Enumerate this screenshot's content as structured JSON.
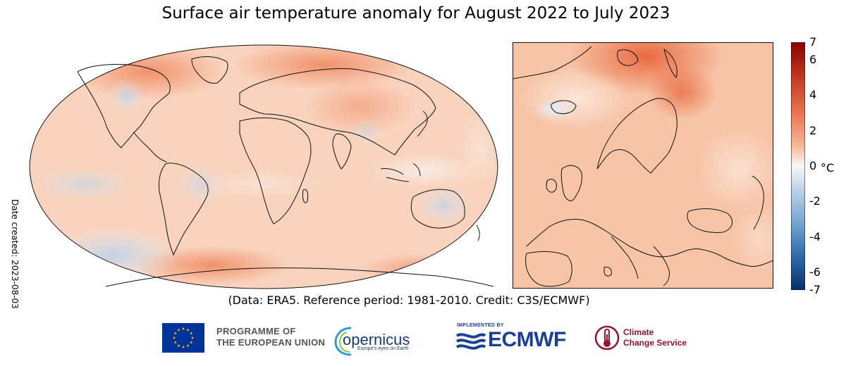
{
  "title": "Surface air temperature anomaly for August 2022 to July 2023",
  "caption": "(Data: ERA5.  Reference period: 1981-2010.  Credit: C3S/ECMWF)",
  "date_created": "Date created: 2023-08-03",
  "colorbar": {
    "unit": "°C",
    "ticks": [
      "7",
      "6",
      "4",
      "2",
      "0",
      "-2",
      "-4",
      "-6",
      "-7"
    ],
    "range": [
      -7,
      7
    ],
    "colors": [
      "#08306b",
      "#2166ac",
      "#92c5de",
      "#f7f7f7",
      "#fddbc7",
      "#f4a582",
      "#d6604d",
      "#b2182b",
      "#8b0000"
    ]
  },
  "maps": [
    {
      "id": "world",
      "projection": "Robinson",
      "extent": "global"
    },
    {
      "id": "europe",
      "extent": "Europe"
    }
  ],
  "logos": {
    "eu_line1": "PROGRAMME OF",
    "eu_line2": "THE EUROPEAN UNION",
    "copernicus_word": "opernicus",
    "copernicus_tagline": "Europe's eyes on Earth",
    "ecmwf_implemented": "IMPLEMENTED BY",
    "ecmwf_word": "ECMWF",
    "c3s_line1": "Climate",
    "c3s_line2": "Change Service"
  }
}
